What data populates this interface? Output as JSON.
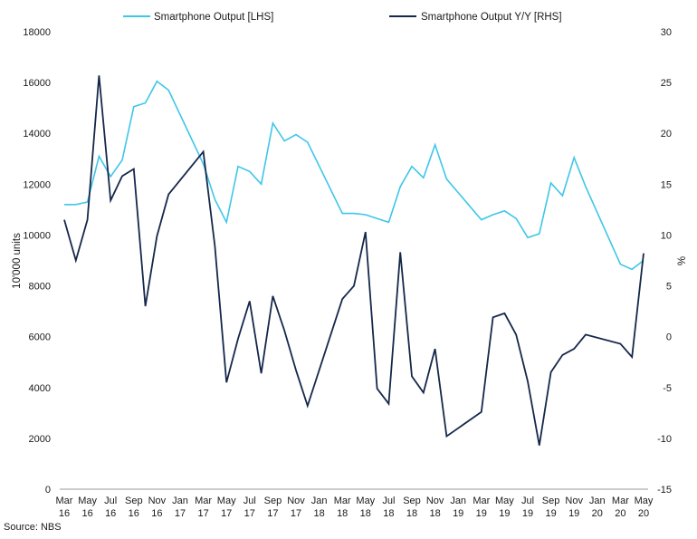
{
  "chart_data": {
    "type": "line",
    "x": [
      "2016-03",
      "2016-04",
      "2016-05",
      "2016-06",
      "2016-07",
      "2016-08",
      "2016-09",
      "2016-10",
      "2016-11",
      "2016-12",
      "2017-03",
      "2017-04",
      "2017-05",
      "2017-06",
      "2017-07",
      "2017-08",
      "2017-09",
      "2017-10",
      "2017-11",
      "2017-12",
      "2018-03",
      "2018-04",
      "2018-05",
      "2018-06",
      "2018-07",
      "2018-08",
      "2018-09",
      "2018-10",
      "2018-11",
      "2018-12",
      "2019-03",
      "2019-04",
      "2019-05",
      "2019-06",
      "2019-07",
      "2019-08",
      "2019-09",
      "2019-10",
      "2019-11",
      "2019-12",
      "2020-03",
      "2020-04",
      "2020-05"
    ],
    "x_tick_labels": [
      {
        "m": "Mar",
        "y": "16"
      },
      {
        "m": "May",
        "y": "16"
      },
      {
        "m": "Jul",
        "y": "16"
      },
      {
        "m": "Sep",
        "y": "16"
      },
      {
        "m": "Nov",
        "y": "16"
      },
      {
        "m": "Jan",
        "y": "17"
      },
      {
        "m": "Mar",
        "y": "17"
      },
      {
        "m": "May",
        "y": "17"
      },
      {
        "m": "Jul",
        "y": "17"
      },
      {
        "m": "Sep",
        "y": "17"
      },
      {
        "m": "Nov",
        "y": "17"
      },
      {
        "m": "Jan",
        "y": "18"
      },
      {
        "m": "Mar",
        "y": "18"
      },
      {
        "m": "May",
        "y": "18"
      },
      {
        "m": "Jul",
        "y": "18"
      },
      {
        "m": "Sep",
        "y": "18"
      },
      {
        "m": "Nov",
        "y": "18"
      },
      {
        "m": "Jan",
        "y": "19"
      },
      {
        "m": "Mar",
        "y": "19"
      },
      {
        "m": "May",
        "y": "19"
      },
      {
        "m": "Jul",
        "y": "19"
      },
      {
        "m": "Sep",
        "y": "19"
      },
      {
        "m": "Nov",
        "y": "19"
      },
      {
        "m": "Jan",
        "y": "20"
      },
      {
        "m": "Mar",
        "y": "20"
      },
      {
        "m": "May",
        "y": "20"
      }
    ],
    "series": [
      {
        "name": "Smartphone Output [LHS]",
        "axis": "left",
        "color": "#3ec6e8",
        "values": [
          11200,
          11200,
          11300,
          13100,
          12300,
          12950,
          15050,
          15200,
          16050,
          15700,
          12800,
          11400,
          10500,
          12700,
          12500,
          12000,
          14400,
          13700,
          13950,
          13650,
          10850,
          10850,
          10800,
          10650,
          10500,
          11900,
          12700,
          12250,
          13550,
          12200,
          10600,
          10800,
          10950,
          10650,
          9900,
          10050,
          12050,
          11550,
          13050,
          11900,
          8850,
          8650,
          9000
        ]
      },
      {
        "name": "Smartphone Output Y/Y [RHS]",
        "axis": "right",
        "color": "#15284a",
        "values": [
          11.5,
          7.5,
          11.5,
          25.7,
          13.4,
          15.8,
          16.5,
          3.0,
          9.9,
          14.0,
          18.2,
          8.9,
          -4.5,
          -0.2,
          3.5,
          -3.6,
          4.0,
          0.6,
          -3.3,
          -6.8,
          3.7,
          5.0,
          10.3,
          -5.1,
          -6.6,
          8.3,
          -3.9,
          -5.5,
          -1.2,
          -9.8,
          -7.4,
          1.9,
          2.3,
          0.2,
          -4.4,
          -10.7,
          -3.5,
          -1.8,
          -1.2,
          0.2,
          -0.7,
          -2.0,
          8.2
        ]
      }
    ],
    "yaxis_left": {
      "label": "10'000 units",
      "min": 0,
      "max": 18000,
      "ticks": [
        0,
        2000,
        4000,
        6000,
        8000,
        10000,
        12000,
        14000,
        16000,
        18000
      ]
    },
    "yaxis_right": {
      "label": "%",
      "min": -15,
      "max": 30,
      "ticks": [
        -15,
        -10,
        -5,
        0,
        5,
        10,
        15,
        20,
        25,
        30
      ]
    },
    "grid": false,
    "legend_position": "top"
  },
  "source": "Source: NBS"
}
